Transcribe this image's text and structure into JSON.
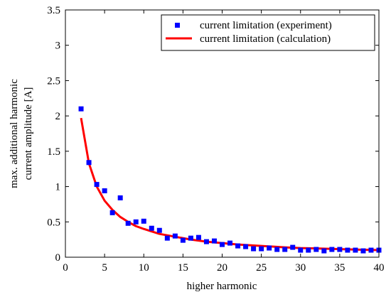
{
  "chart_data": {
    "type": "scatter",
    "xlabel": "higher harmonic",
    "ylabel_lines": [
      "max. additional harmonic",
      "current amplitude  [A]"
    ],
    "xlim": [
      0,
      40
    ],
    "ylim": [
      0,
      3.5
    ],
    "xticks": [
      "0",
      "5",
      "10",
      "15",
      "20",
      "25",
      "30",
      "35",
      "40"
    ],
    "yticks": [
      "0",
      "0.5",
      "1",
      "1.5",
      "2",
      "2.5",
      "3",
      "3.5"
    ],
    "grid": false,
    "legend_position": "top-right",
    "series": [
      {
        "name": "current limitation (experiment)",
        "kind": "markers",
        "color": "#0000ff",
        "x": [
          2,
          3,
          4,
          5,
          6,
          7,
          8,
          9,
          10,
          11,
          12,
          13,
          14,
          15,
          16,
          17,
          18,
          19,
          20,
          21,
          22,
          23,
          24,
          25,
          26,
          27,
          28,
          29,
          30,
          31,
          32,
          33,
          34,
          35,
          36,
          37,
          38,
          39,
          40
        ],
        "y": [
          2.1,
          1.34,
          1.03,
          0.94,
          0.63,
          0.84,
          0.48,
          0.5,
          0.51,
          0.41,
          0.38,
          0.27,
          0.3,
          0.24,
          0.27,
          0.28,
          0.22,
          0.23,
          0.18,
          0.2,
          0.16,
          0.15,
          0.12,
          0.12,
          0.13,
          0.11,
          0.11,
          0.14,
          0.1,
          0.1,
          0.11,
          0.09,
          0.11,
          0.11,
          0.1,
          0.1,
          0.09,
          0.1,
          0.1
        ]
      },
      {
        "name": "current limitation (calculation)",
        "kind": "line",
        "color": "#ff0000",
        "x": [
          2,
          3,
          4,
          5,
          6,
          7,
          8,
          9,
          10,
          12,
          14,
          16,
          18,
          20,
          22,
          25,
          28,
          30,
          32,
          35,
          38,
          40
        ],
        "y": [
          1.97,
          1.33,
          1.0,
          0.8,
          0.67,
          0.57,
          0.5,
          0.44,
          0.4,
          0.33,
          0.29,
          0.25,
          0.22,
          0.2,
          0.18,
          0.16,
          0.14,
          0.13,
          0.125,
          0.114,
          0.105,
          0.1
        ]
      }
    ]
  }
}
